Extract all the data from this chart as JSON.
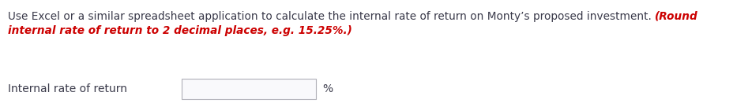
{
  "line1_black": "Use Excel or a similar spreadsheet application to calculate the internal rate of return on Monty’s proposed investment. ",
  "line1_red": "(Round",
  "line2_red": "internal rate of return to 2 decimal places, e.g. 15.25%.)",
  "label_text": "Internal rate of return",
  "percent_text": "%",
  "bg_color": "#ffffff",
  "black_color": "#3a3a4a",
  "red_color": "#cc0000",
  "font_size_main": 9.8,
  "font_size_label": 10.0,
  "fig_width": 9.29,
  "fig_height": 1.41,
  "dpi": 100
}
